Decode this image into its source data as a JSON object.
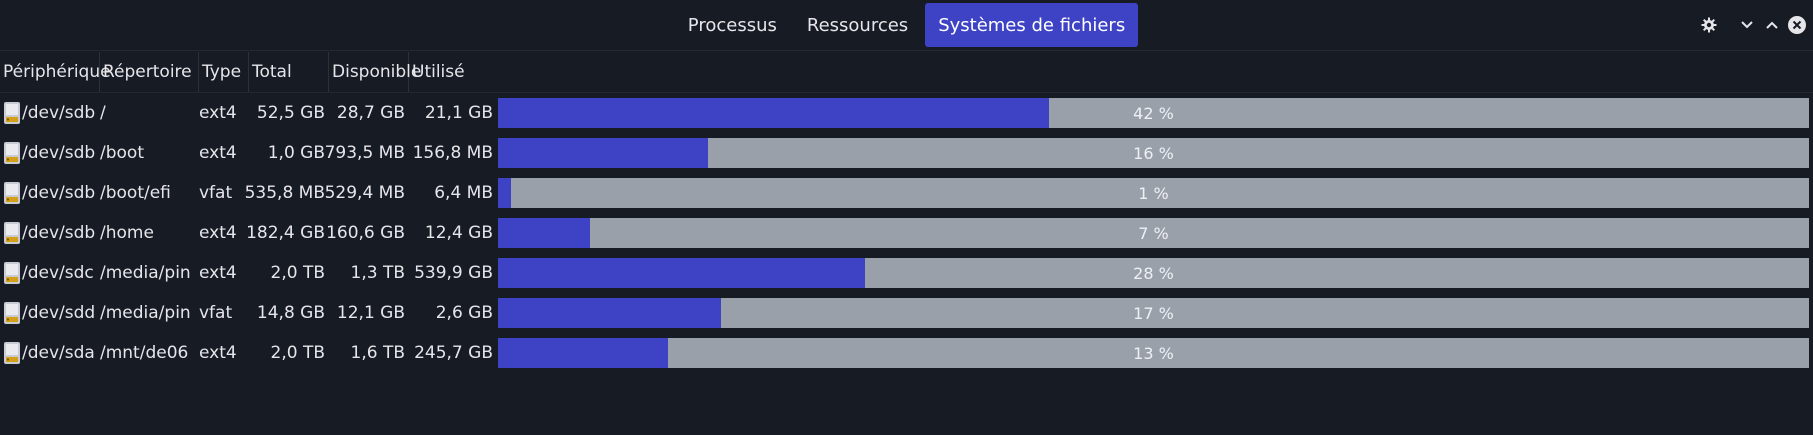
{
  "tabs": [
    {
      "label": "Processus",
      "active": false
    },
    {
      "label": "Ressources",
      "active": false
    },
    {
      "label": "Systèmes de fichiers",
      "active": true
    }
  ],
  "window_controls": [
    "gear-icon",
    "minimize-icon",
    "maximize-icon",
    "close-icon"
  ],
  "columns": [
    "Périphérique",
    "Répertoire",
    "Type",
    "Total",
    "Disponible",
    "Utilisé"
  ],
  "rows": [
    {
      "device": "/dev/sdb",
      "dir": "/",
      "type": "ext4",
      "total": "52,5 GB",
      "free": "28,7 GB",
      "used": "21,1 GB",
      "percent": 42,
      "percent_label": "42 %"
    },
    {
      "device": "/dev/sdb",
      "dir": "/boot",
      "type": "ext4",
      "total": "1,0 GB",
      "free": "793,5 MB",
      "used": "156,8 MB",
      "percent": 16,
      "percent_label": "16 %"
    },
    {
      "device": "/dev/sdb",
      "dir": "/boot/efi",
      "type": "vfat",
      "total": "535,8 MB",
      "free": "529,4 MB",
      "used": "6,4 MB",
      "percent": 1,
      "percent_label": "1 %"
    },
    {
      "device": "/dev/sdb",
      "dir": "/home",
      "type": "ext4",
      "total": "182,4 GB",
      "free": "160,6 GB",
      "used": "12,4 GB",
      "percent": 7,
      "percent_label": "7 %"
    },
    {
      "device": "/dev/sdc",
      "dir": "/media/pin",
      "type": "ext4",
      "total": "2,0 TB",
      "free": "1,3 TB",
      "used": "539,9 GB",
      "percent": 28,
      "percent_label": "28 %"
    },
    {
      "device": "/dev/sdd",
      "dir": "/media/pin",
      "type": "vfat",
      "total": "14,8 GB",
      "free": "12,1 GB",
      "used": "2,6 GB",
      "percent": 17,
      "percent_label": "17 %"
    },
    {
      "device": "/dev/sda",
      "dir": "/mnt/de06",
      "type": "ext4",
      "total": "2,0 TB",
      "free": "1,6 TB",
      "used": "245,7 GB",
      "percent": 13,
      "percent_label": "13 %"
    }
  ],
  "colors": {
    "background": "#171b24",
    "accent": "#3d43c4",
    "bar_track": "#9aa0aa"
  }
}
